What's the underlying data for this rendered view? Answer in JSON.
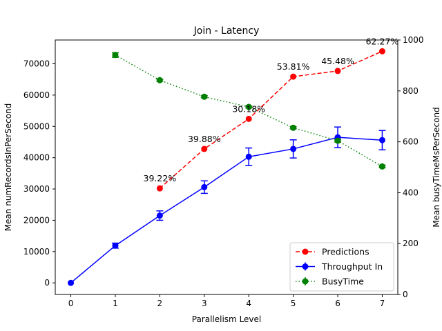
{
  "chart_data": {
    "type": "line",
    "title": "Join - Latency",
    "xlabel": "Parallelism Level",
    "ylabel_left": "Mean numRecordsInPerSecond",
    "ylabel_right": "Mean busyTimeMsPerSecond",
    "xlim": [
      -0.35,
      7.35
    ],
    "ylim_left": [
      -3700,
      77600
    ],
    "ylim_right": [
      0,
      1000
    ],
    "x_ticks": [
      "0",
      "1",
      "2",
      "3",
      "4",
      "5",
      "6",
      "7"
    ],
    "y_left_ticks": [
      "0",
      "10000",
      "20000",
      "30000",
      "40000",
      "50000",
      "60000",
      "70000"
    ],
    "y_right_ticks": [
      "0",
      "200",
      "400",
      "600",
      "800",
      "1000"
    ],
    "legend_position": "lower-right",
    "grid": false,
    "series": [
      {
        "name": "Predictions",
        "axis": "left",
        "color": "#ff0000",
        "line_style": "dashed",
        "x": [
          2,
          3,
          4,
          5,
          6,
          7
        ],
        "y": [
          30200,
          42800,
          52400,
          65900,
          67700,
          74000
        ],
        "labels": [
          "39.22%",
          "39.88%",
          "30.18%",
          "53.81%",
          "45.48%",
          "62.27%"
        ]
      },
      {
        "name": "Throughput In",
        "axis": "left",
        "color": "#0000ff",
        "line_style": "solid",
        "x": [
          0,
          1,
          2,
          3,
          4,
          5,
          6,
          7
        ],
        "y": [
          0,
          11900,
          21500,
          30600,
          40300,
          42800,
          46500,
          45600
        ],
        "yerr": [
          0,
          800,
          1500,
          2000,
          2800,
          2900,
          3300,
          3100
        ]
      },
      {
        "name": "BusyTime",
        "axis": "right",
        "color": "#008000",
        "line_style": "dotted",
        "x": [
          1,
          2,
          3,
          4,
          5,
          6,
          7
        ],
        "y": [
          941,
          842,
          777,
          737,
          655,
          604,
          503
        ],
        "yerr": [
          9,
          4,
          4,
          4,
          4,
          5,
          5
        ]
      }
    ]
  }
}
